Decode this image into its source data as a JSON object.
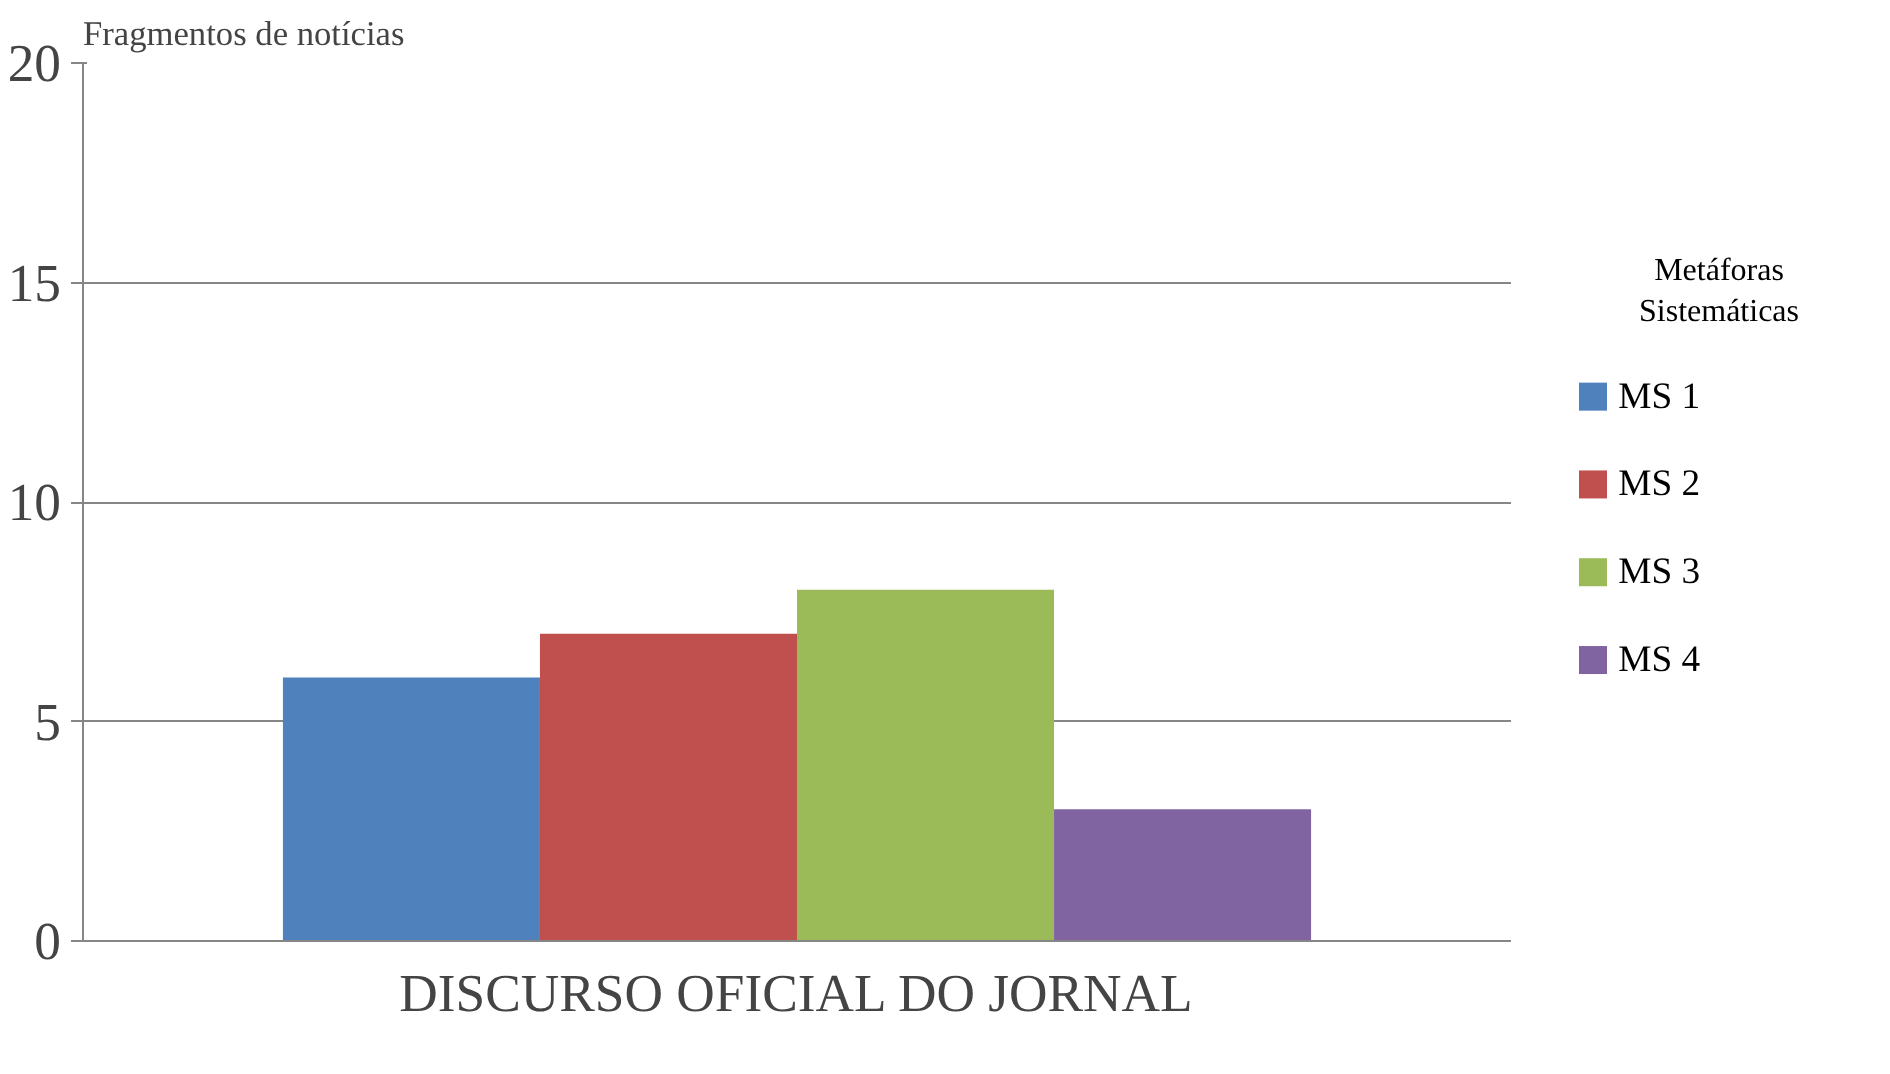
{
  "chart_data": {
    "type": "bar",
    "ylabel": "Fragmentos de notícias",
    "legend_title": "Metáforas Sistemáticas",
    "categories": [
      "DISCURSO OFICIAL DO JORNAL"
    ],
    "series": [
      {
        "name": "MS 1",
        "color": "#4f81bd",
        "values": [
          6
        ]
      },
      {
        "name": "MS 2",
        "color": "#c0504d",
        "values": [
          7
        ]
      },
      {
        "name": "MS 3",
        "color": "#9bbb59",
        "values": [
          8
        ]
      },
      {
        "name": "MS 4",
        "color": "#8064a2",
        "values": [
          3
        ]
      }
    ],
    "ylim": [
      0,
      20
    ],
    "yticks": [
      0,
      5,
      10,
      15,
      20
    ],
    "grid": "y",
    "legend": "right"
  }
}
